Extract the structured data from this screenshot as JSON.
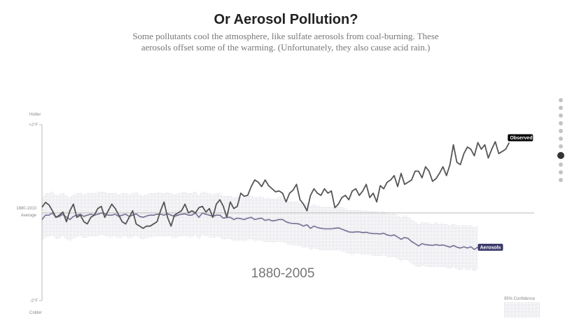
{
  "header": {
    "title": "Or Aerosol Pollution?",
    "subtitle": "Some pollutants cool the atmosphere, like sulfate aerosols from coal-burning. These aerosols offset some of the warming. (Unfortunately, they also cause acid rain.)"
  },
  "nav": {
    "dot_count": 11,
    "active_index": 7
  },
  "chart_data": {
    "type": "line",
    "period_label": "1880-2005",
    "y_top_label": "Hotter",
    "y_bottom_label": "Colder",
    "y_ticks": {
      "top": "+2°F",
      "bottom": "-2°F"
    },
    "baseline_label": [
      "1880-1910",
      "Average"
    ],
    "ylim": [
      -2,
      2
    ],
    "xlim": [
      1880,
      2014
    ],
    "legend": {
      "band": "95% Confidence"
    },
    "colors": {
      "observed": "#555555",
      "aerosols": "#7d7b9c",
      "aerosols_label_bg": "#3b3a6b",
      "observed_label_bg": "#000000",
      "band": "#c9c9d6"
    },
    "series": [
      {
        "name": "Observed",
        "start_year": 1880,
        "values": [
          0.13,
          0.24,
          0.18,
          0.05,
          -0.1,
          -0.05,
          0.02,
          -0.2,
          0.05,
          0.2,
          -0.1,
          -0.05,
          -0.2,
          -0.25,
          -0.1,
          -0.05,
          0.1,
          0.15,
          -0.1,
          0.05,
          0.2,
          0.1,
          -0.05,
          -0.2,
          -0.25,
          -0.1,
          0.05,
          -0.25,
          -0.3,
          -0.35,
          -0.3,
          -0.3,
          -0.25,
          -0.2,
          0.05,
          0.25,
          -0.1,
          -0.3,
          -0.05,
          0.0,
          0.05,
          0.2,
          0.0,
          0.05,
          0.0,
          0.12,
          0.15,
          0.02,
          0.1,
          -0.1,
          0.2,
          0.3,
          0.15,
          -0.1,
          0.25,
          0.1,
          0.15,
          0.45,
          0.38,
          0.4,
          0.6,
          0.75,
          0.7,
          0.6,
          0.75,
          0.62,
          0.55,
          0.48,
          0.5,
          0.45,
          0.25,
          0.45,
          0.52,
          0.65,
          0.3,
          0.2,
          0.05,
          0.4,
          0.55,
          0.45,
          0.4,
          0.55,
          0.45,
          0.5,
          0.12,
          0.2,
          0.35,
          0.4,
          0.3,
          0.5,
          0.55,
          0.4,
          0.5,
          0.65,
          0.35,
          0.45,
          0.25,
          0.62,
          0.55,
          0.7,
          0.75,
          0.85,
          0.6,
          0.9,
          0.65,
          0.7,
          0.75,
          0.95,
          0.95,
          0.8,
          1.05,
          0.95,
          0.72,
          0.78,
          0.9,
          1.05,
          0.85,
          1.1,
          1.55,
          1.15,
          1.1,
          1.35,
          1.5,
          1.45,
          1.3,
          1.6,
          1.45,
          1.55,
          1.25,
          1.45,
          1.62,
          1.35,
          1.4,
          1.45,
          1.6
        ]
      },
      {
        "name": "Aerosols",
        "start_year": 1880,
        "ci95_halfwidth": 0.5,
        "values": [
          -0.15,
          -0.05,
          -0.05,
          0.0,
          -0.1,
          -0.08,
          -0.03,
          -0.1,
          -0.15,
          -0.08,
          -0.05,
          -0.03,
          -0.08,
          -0.05,
          -0.03,
          -0.05,
          -0.03,
          0.0,
          -0.02,
          -0.05,
          -0.05,
          -0.03,
          -0.08,
          -0.05,
          -0.03,
          -0.08,
          -0.05,
          -0.02,
          -0.08,
          -0.1,
          -0.07,
          -0.05,
          -0.05,
          -0.03,
          -0.03,
          -0.05,
          -0.02,
          -0.05,
          -0.08,
          -0.05,
          -0.03,
          -0.02,
          -0.05,
          -0.05,
          0.0,
          -0.1,
          0.0,
          -0.03,
          -0.05,
          -0.08,
          -0.05,
          -0.05,
          -0.12,
          -0.1,
          -0.1,
          -0.15,
          -0.12,
          -0.13,
          -0.15,
          -0.12,
          -0.1,
          -0.15,
          -0.13,
          -0.12,
          -0.17,
          -0.15,
          -0.18,
          -0.17,
          -0.15,
          -0.15,
          -0.2,
          -0.23,
          -0.24,
          -0.24,
          -0.26,
          -0.3,
          -0.27,
          -0.35,
          -0.3,
          -0.33,
          -0.35,
          -0.36,
          -0.36,
          -0.36,
          -0.35,
          -0.34,
          -0.37,
          -0.4,
          -0.43,
          -0.44,
          -0.43,
          -0.43,
          -0.45,
          -0.44,
          -0.46,
          -0.47,
          -0.47,
          -0.48,
          -0.46,
          -0.5,
          -0.52,
          -0.5,
          -0.55,
          -0.6,
          -0.56,
          -0.58,
          -0.65,
          -0.7,
          -0.75,
          -0.7,
          -0.72,
          -0.73,
          -0.74,
          -0.72,
          -0.74,
          -0.73,
          -0.75,
          -0.78,
          -0.74,
          -0.78,
          -0.8,
          -0.77,
          -0.8,
          -0.77,
          -0.83,
          -0.78
        ]
      }
    ]
  }
}
